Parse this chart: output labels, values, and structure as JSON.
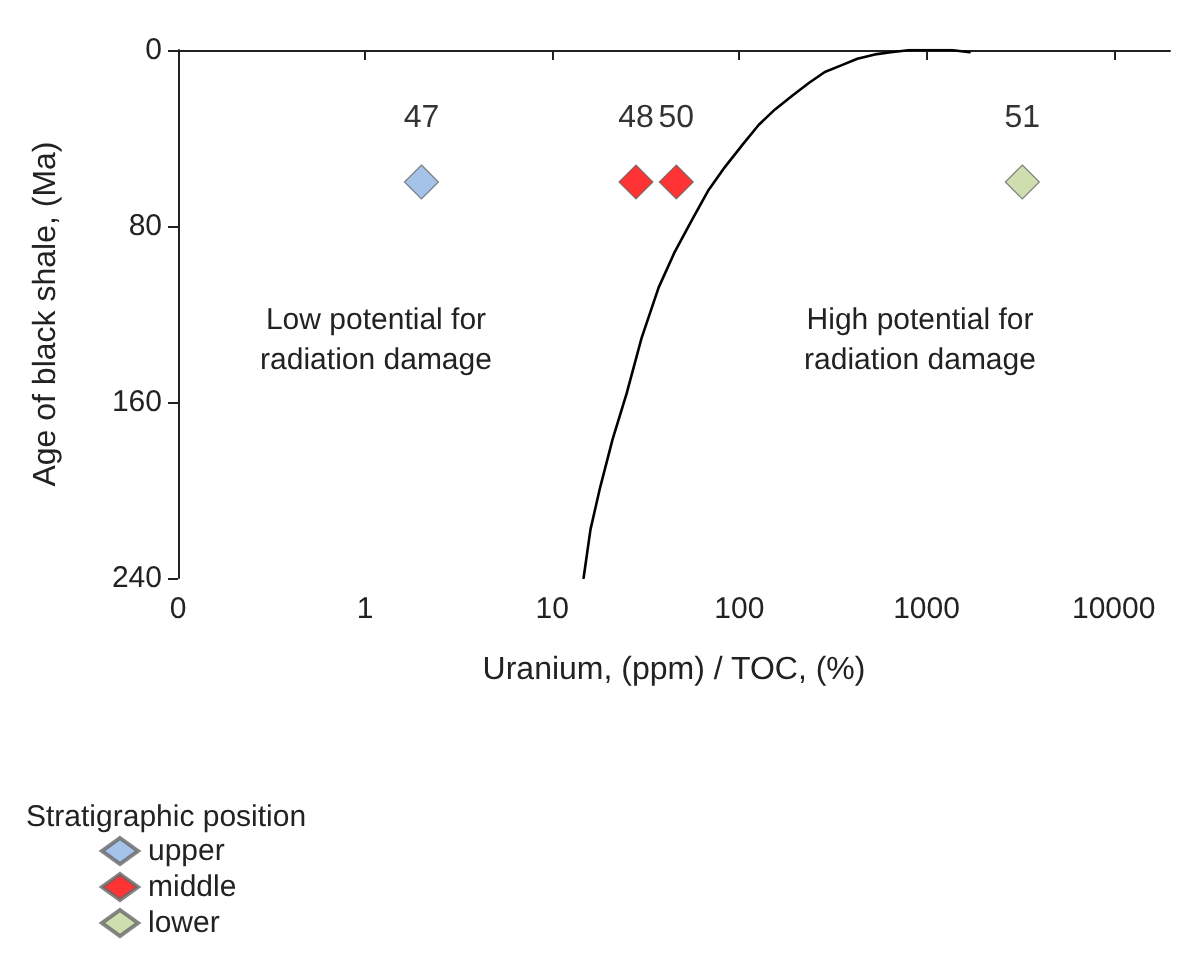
{
  "chart_data": {
    "type": "scatter",
    "xlabel": "Uranium, (ppm) / TOC, (%)",
    "ylabel": "Age of black shale, (Ma)",
    "legend_title": "Stratigraphic position",
    "annotations": [
      "Low potential for radiation damage",
      "High potential for radiation damage",
      {
        "text": "47",
        "x": 2.0,
        "y": 60
      },
      {
        "text": "48",
        "x": 28,
        "y": 60
      },
      {
        "text": "50",
        "x": 46,
        "y": 60
      },
      {
        "text": "51",
        "x": 3250,
        "y": 60
      }
    ],
    "log": "x",
    "grid": false,
    "legend": "bottom left",
    "marker": "diamond",
    "xlim": [
      0.1,
      20000
    ],
    "xticks": [
      {
        "value": 0.1,
        "label": "0"
      },
      1,
      10,
      100,
      1000,
      10000
    ],
    "ylim": [
      240,
      0
    ],
    "yticks": [
      0,
      80,
      160,
      240
    ],
    "series": [
      {
        "name": "upper",
        "color": "#8eb4e3",
        "x": [
          2.0
        ],
        "values": [
          60
        ]
      },
      {
        "name": "middle",
        "color": "#ff0000",
        "x": [
          28,
          46
        ],
        "values": [
          60,
          60
        ]
      },
      {
        "name": "lower",
        "color": "#c3d69b",
        "x": [
          3250
        ],
        "values": [
          60
        ]
      },
      {
        "type": "line",
        "color": "#000000",
        "marker": "none",
        "line_style": "solid",
        "x": [
          14.7,
          16,
          18,
          21,
          25,
          30,
          37,
          45,
          56,
          68,
          84,
          104,
          127,
          155,
          190,
          235,
          286,
          350,
          427,
          530,
          645,
          820,
          1040,
          1350,
          1700
        ],
        "values": [
          240,
          218,
          199,
          177,
          156,
          131,
          108,
          92,
          77,
          64,
          53,
          43,
          34,
          27,
          21,
          15,
          10,
          7,
          4,
          2,
          1,
          0,
          0,
          0,
          1
        ]
      }
    ]
  }
}
